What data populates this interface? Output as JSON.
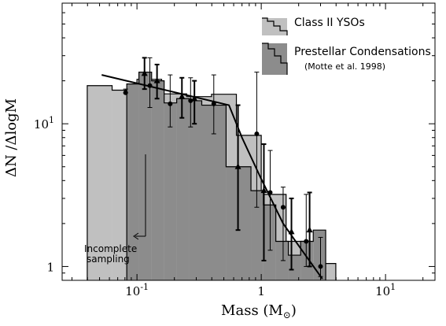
{
  "chart_data": {
    "type": "bar",
    "title": "",
    "xlabel": "Mass (M",
    "xlabel_sub": "⊙",
    "xlabel_close": ")",
    "ylabel": "ΔN /ΔlogM",
    "xscale": "log",
    "yscale": "log",
    "xlim": [
      0.025,
      25
    ],
    "ylim": [
      0.8,
      70
    ],
    "x_ticks": [
      {
        "value": 0.1,
        "base": "10",
        "exp": "-1"
      },
      {
        "value": 1,
        "base": "1",
        "exp": ""
      },
      {
        "value": 10,
        "base": "10",
        "exp": "1"
      }
    ],
    "y_ticks": [
      {
        "value": 1,
        "base": "1",
        "exp": ""
      },
      {
        "value": 10,
        "base": "10",
        "exp": "1"
      }
    ],
    "grid": false,
    "legend_position": "top-right",
    "series": [
      {
        "name": "Class II YSOs",
        "color": "#c0c0c0",
        "bin_edges": [
          0.0398,
          0.0631,
          0.1,
          0.158,
          0.251,
          0.398,
          0.631,
          1.0,
          1.585,
          2.512,
          3.981
        ],
        "values": [
          18.5,
          17.2,
          20.5,
          16.2,
          15.5,
          16.1,
          8.3,
          3.2,
          1.5,
          1.05
        ]
      },
      {
        "name": "Prestellar Condensations",
        "color": "#8c8c8c",
        "bin_edges": [
          0.0828,
          0.1037,
          0.1312,
          0.1655,
          0.2088,
          0.2629,
          0.3322,
          0.4163,
          0.5213,
          0.8265,
          1.0405,
          1.3101,
          1.652,
          2.075,
          2.62,
          3.3
        ],
        "values": [
          19.0,
          23.0,
          20.0,
          14.0,
          15.0,
          14.5,
          13.5,
          13.5,
          5.0,
          3.4,
          2.7,
          1.5,
          1.2,
          1.5,
          1.8
        ]
      }
    ],
    "error_points": [
      {
        "x": 0.081,
        "y": 16.5,
        "lo": 16.5,
        "hi": 17.5,
        "marker": "circle"
      },
      {
        "x": 0.127,
        "y": 18.5,
        "lo": 13.0,
        "hi": 29.0,
        "marker": "circle"
      },
      {
        "x": 0.185,
        "y": 13.8,
        "lo": 9.5,
        "hi": 22.0,
        "marker": "circle"
      },
      {
        "x": 0.27,
        "y": 14.5,
        "lo": 9.5,
        "hi": 21.0,
        "marker": "circle"
      },
      {
        "x": 0.415,
        "y": 13.8,
        "lo": 8.5,
        "hi": 22.0,
        "marker": "circle"
      },
      {
        "x": 0.92,
        "y": 8.5,
        "lo": 2.6,
        "hi": 23.0,
        "marker": "circle"
      },
      {
        "x": 1.18,
        "y": 3.3,
        "lo": 1.3,
        "hi": 6.5,
        "marker": "circle"
      },
      {
        "x": 1.5,
        "y": 2.6,
        "lo": 1.1,
        "hi": 3.6,
        "marker": "circle"
      },
      {
        "x": 2.3,
        "y": 1.5,
        "lo": 1.0,
        "hi": 3.2,
        "marker": "circle"
      },
      {
        "x": 3.0,
        "y": 1.0,
        "lo": 0.85,
        "hi": 1.6,
        "marker": "circle"
      },
      {
        "x": 0.115,
        "y": 22.5,
        "lo": 17.5,
        "hi": 29.0,
        "marker": "triangle"
      },
      {
        "x": 0.145,
        "y": 20.0,
        "lo": 15.0,
        "hi": 26.0,
        "marker": "triangle"
      },
      {
        "x": 0.23,
        "y": 15.5,
        "lo": 11.0,
        "hi": 21.0,
        "marker": "triangle"
      },
      {
        "x": 0.29,
        "y": 15.0,
        "lo": 10.0,
        "hi": 20.0,
        "marker": "triangle"
      },
      {
        "x": 0.65,
        "y": 5.0,
        "lo": 1.8,
        "hi": 13.5,
        "marker": "triangle"
      },
      {
        "x": 1.05,
        "y": 3.4,
        "lo": 1.1,
        "hi": 7.2,
        "marker": "triangle"
      },
      {
        "x": 1.75,
        "y": 1.75,
        "lo": 0.95,
        "hi": 3.0,
        "marker": "triangle"
      },
      {
        "x": 2.45,
        "y": 1.8,
        "lo": 1.0,
        "hi": 3.3,
        "marker": "triangle"
      }
    ],
    "fit_line": [
      [
        0.052,
        22.0
      ],
      [
        0.55,
        13.5
      ],
      [
        0.7,
        8.0
      ],
      [
        1.0,
        4.1
      ],
      [
        1.5,
        2.0
      ],
      [
        2.0,
        1.4
      ],
      [
        3.1,
        0.82
      ]
    ],
    "legend": [
      {
        "label": "Class II YSOs",
        "color": "#c0c0c0"
      },
      {
        "label": "Prestellar Condensations",
        "sub": "(Motte et al. 1998)",
        "color": "#8c8c8c"
      }
    ],
    "annotation": {
      "lines": [
        "Incomplete",
        "sampling"
      ],
      "x_mass": 0.082
    }
  }
}
